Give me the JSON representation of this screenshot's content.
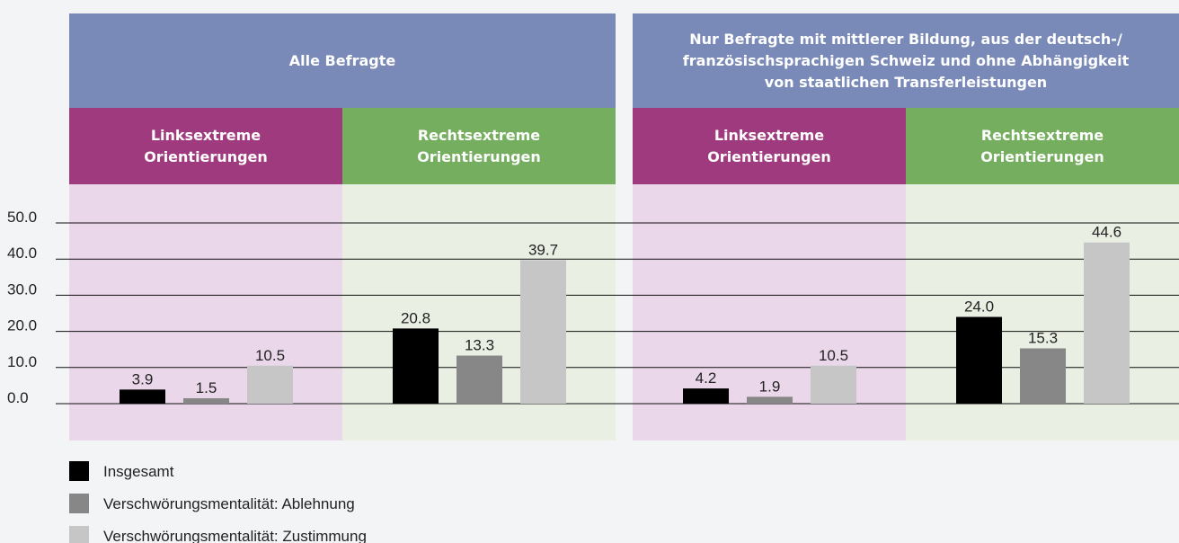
{
  "chart_data": {
    "type": "bar",
    "groups": [
      {
        "title": "Alle Befragte",
        "categories": [
          "Linksextreme\nOrientierungen",
          "Rechtsextreme\nOrientierungen"
        ]
      },
      {
        "title": "Nur Befragte mit mittlerer Bildung, aus der deutsch-/\nfranzösischsprachigen Schweiz und ohne Abhängigkeit\nvon staatlichen Transferleistungen",
        "categories": [
          "Linksextreme\nOrientierungen",
          "Rechtsextreme\nOrientierungen"
        ]
      }
    ],
    "group_color": "#7a8ab8",
    "category_colors": [
      "#a03a7e",
      "#74ae5e"
    ],
    "category_backgrounds": [
      "#ead8ea",
      "#e9efe3"
    ],
    "series": [
      {
        "name": "Insgesamt",
        "color": "#000000",
        "values": [
          3.9,
          20.8,
          4.2,
          24.0
        ],
        "value_labels": [
          "3.9",
          "20.8",
          "4.2",
          "24.0"
        ]
      },
      {
        "name": "Verschwörungsmentalität: Ablehnung",
        "color": "#878787",
        "values": [
          1.5,
          13.3,
          1.9,
          15.3
        ],
        "value_labels": [
          "1.5",
          "13.3",
          "1.9",
          "15.3"
        ]
      },
      {
        "name": "Verschwörungsmentalität: Zustimmung",
        "color": "#c6c6c6",
        "values": [
          10.5,
          39.7,
          10.5,
          44.6
        ],
        "value_labels": [
          "10.5",
          "39.7",
          "10.5",
          "44.6"
        ]
      }
    ],
    "ylim": [
      0,
      50
    ],
    "yticks": [
      {
        "value": 0,
        "label": "0.0"
      },
      {
        "value": 10,
        "label": "10.0"
      },
      {
        "value": 20,
        "label": "20.0"
      },
      {
        "value": 30,
        "label": "30.0"
      },
      {
        "value": 40,
        "label": "40.0"
      },
      {
        "value": 50,
        "label": "50.0"
      }
    ],
    "grid": true
  }
}
